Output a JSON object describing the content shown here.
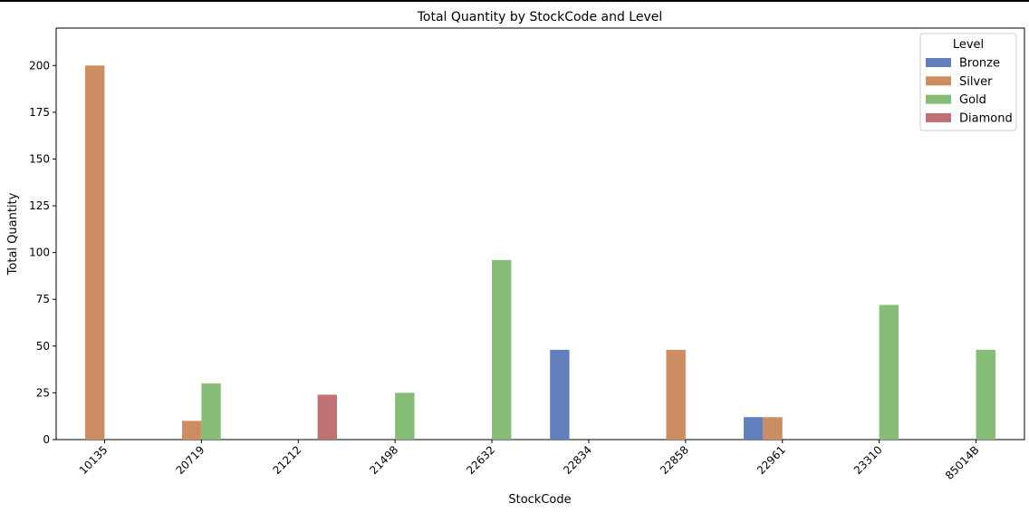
{
  "chart_data": {
    "type": "bar",
    "title": "Total Quantity by StockCode and Level",
    "xlabel": "StockCode",
    "ylabel": "Total Quantity",
    "ylim": [
      0,
      220
    ],
    "yticks": [
      0,
      25,
      50,
      75,
      100,
      125,
      150,
      175,
      200
    ],
    "categories": [
      "10135",
      "20719",
      "21212",
      "21498",
      "22632",
      "22834",
      "22858",
      "22961",
      "23310",
      "85014B"
    ],
    "legend": {
      "title": "Level",
      "placement": "top-right"
    },
    "grid": false,
    "series": [
      {
        "name": "Bronze",
        "color": "#6380be",
        "values": [
          null,
          null,
          null,
          null,
          null,
          48,
          null,
          12,
          null,
          null
        ]
      },
      {
        "name": "Silver",
        "color": "#cd8d62",
        "values": [
          200,
          10,
          null,
          null,
          null,
          null,
          48,
          12,
          null,
          null
        ]
      },
      {
        "name": "Gold",
        "color": "#86bd76",
        "values": [
          null,
          30,
          null,
          25,
          96,
          null,
          null,
          null,
          72,
          48
        ]
      },
      {
        "name": "Diamond",
        "color": "#c07172",
        "values": [
          null,
          null,
          24,
          null,
          null,
          null,
          null,
          null,
          null,
          null
        ]
      }
    ]
  }
}
